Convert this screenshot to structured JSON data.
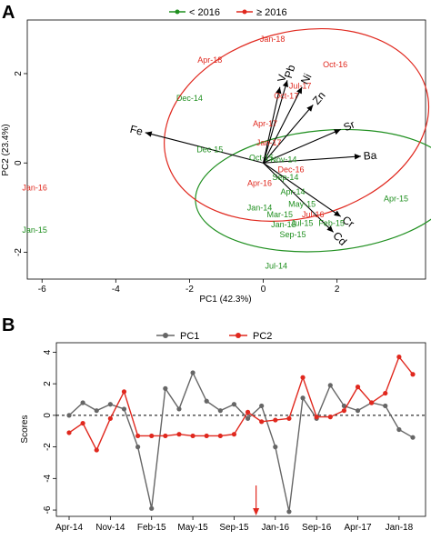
{
  "panels": {
    "a": {
      "letter": "A"
    },
    "b": {
      "letter": "B"
    }
  },
  "colors": {
    "group_before": "#1f8f1f",
    "group_after": "#e0281e",
    "pc1": "#666666",
    "pc2": "#e0281e",
    "arrow_marker": "#e0281e"
  },
  "chart_data": [
    {
      "type": "scatter",
      "subtype": "pca-biplot",
      "title": "",
      "xlabel": "PC1 (42.3%)",
      "ylabel": "PC2 (23.4%)",
      "xlim": [
        -6.4,
        4.4
      ],
      "ylim": [
        -2.6,
        3.2
      ],
      "x_ticks": [
        -6,
        -4,
        -2,
        0,
        2
      ],
      "y_ticks": [
        -2,
        0,
        2
      ],
      "legend": {
        "placement": "top",
        "entries": [
          {
            "name": "< 2016",
            "color": "#1f8f1f"
          },
          {
            "name": "≥ 2016",
            "color": "#e0281e"
          }
        ]
      },
      "ellipses": [
        {
          "group": "< 2016",
          "cx": 1.7,
          "cy": -0.62,
          "rx": 3.55,
          "ry": 1.35,
          "angle_deg": 5,
          "color": "#1f8f1f"
        },
        {
          "group": "≥ 2016",
          "cx": 0.9,
          "cy": 0.85,
          "rx": 3.65,
          "ry": 2.08,
          "angle_deg": 15,
          "color": "#e0281e"
        }
      ],
      "loadings": [
        {
          "name": "Fe",
          "x": -3.2,
          "y": 0.68
        },
        {
          "name": "V",
          "x": 0.45,
          "y": 1.7
        },
        {
          "name": "Pb",
          "x": 0.65,
          "y": 1.85
        },
        {
          "name": "Ni",
          "x": 1.05,
          "y": 1.7
        },
        {
          "name": "Zn",
          "x": 1.35,
          "y": 1.3
        },
        {
          "name": "Sr",
          "x": 2.1,
          "y": 0.75
        },
        {
          "name": "Ba",
          "x": 2.65,
          "y": 0.15
        },
        {
          "name": "Cr",
          "x": 2.1,
          "y": -1.2
        },
        {
          "name": "Cd",
          "x": 1.9,
          "y": -1.55
        }
      ],
      "points": [
        {
          "label": "Jan-18",
          "x": 0.25,
          "y": 2.77,
          "group": "after"
        },
        {
          "label": "Oct-16",
          "x": 1.95,
          "y": 2.2,
          "group": "after"
        },
        {
          "label": "Apr-18",
          "x": -1.45,
          "y": 2.3,
          "group": "after"
        },
        {
          "label": "Jul-17",
          "x": 1.0,
          "y": 1.72,
          "group": "after"
        },
        {
          "label": "Oct-17",
          "x": 0.62,
          "y": 1.5,
          "group": "after"
        },
        {
          "label": "Dec-14",
          "x": -2.0,
          "y": 1.45,
          "group": "before"
        },
        {
          "label": "Apr-17",
          "x": 0.05,
          "y": 0.88,
          "group": "after"
        },
        {
          "label": "Jan-17",
          "x": 0.15,
          "y": 0.45,
          "group": "after"
        },
        {
          "label": "Dec-15",
          "x": -1.45,
          "y": 0.3,
          "group": "before"
        },
        {
          "label": "Oct-15",
          "x": -0.05,
          "y": 0.12,
          "group": "before"
        },
        {
          "label": "Nov-14",
          "x": 0.55,
          "y": 0.08,
          "group": "before"
        },
        {
          "label": "Dec-16",
          "x": 0.75,
          "y": -0.15,
          "group": "after"
        },
        {
          "label": "Sep-14",
          "x": 0.6,
          "y": -0.32,
          "group": "before"
        },
        {
          "label": "Apr-16",
          "x": -0.1,
          "y": -0.45,
          "group": "after"
        },
        {
          "label": "Apr-14",
          "x": 0.8,
          "y": -0.65,
          "group": "before"
        },
        {
          "label": "Apr-15",
          "x": 3.6,
          "y": -0.8,
          "group": "before"
        },
        {
          "label": "Jan-14",
          "x": -0.1,
          "y": -1.0,
          "group": "before"
        },
        {
          "label": "May-15",
          "x": 1.05,
          "y": -0.92,
          "group": "before"
        },
        {
          "label": "Mar-15",
          "x": 0.45,
          "y": -1.15,
          "group": "before"
        },
        {
          "label": "Jul-16",
          "x": 1.35,
          "y": -1.15,
          "group": "after"
        },
        {
          "label": "Jan-15",
          "x": 0.55,
          "y": -1.38,
          "group": "before"
        },
        {
          "label": "Jul-15",
          "x": 1.05,
          "y": -1.35,
          "group": "before"
        },
        {
          "label": "Feb-15",
          "x": 1.85,
          "y": -1.35,
          "group": "before"
        },
        {
          "label": "Sep-15",
          "x": 0.8,
          "y": -1.6,
          "group": "before"
        },
        {
          "label": "Jul-14",
          "x": 0.35,
          "y": -2.3,
          "group": "before"
        },
        {
          "label": "Jan-16",
          "x": -6.2,
          "y": -0.55,
          "group": "after"
        },
        {
          "label": "Jan-15",
          "x": -6.2,
          "y": -1.5,
          "group": "before"
        }
      ]
    },
    {
      "type": "line",
      "title": "",
      "xlabel": "",
      "ylabel": "Scores",
      "ylim": [
        -6.4,
        4.6
      ],
      "y_ticks": [
        -6,
        -4,
        -2,
        0,
        2,
        4
      ],
      "x_tick_labels": [
        "Apr-14",
        "Nov-14",
        "Feb-15",
        "May-15",
        "Sep-15",
        "Jan-16",
        "Sep-16",
        "Apr-17",
        "Jan-18"
      ],
      "x_tick_index": [
        0,
        3,
        6,
        9,
        12,
        15,
        18,
        21,
        24
      ],
      "reference_line": 0,
      "arrow_marker_index": 13.6,
      "legend": {
        "placement": "top",
        "entries": [
          "PC1",
          "PC2"
        ]
      },
      "series": [
        {
          "name": "PC1",
          "color": "#666666",
          "values": [
            0.0,
            0.8,
            0.3,
            0.7,
            0.4,
            -2.0,
            -5.9,
            1.7,
            0.4,
            2.7,
            0.9,
            0.3,
            0.7,
            -0.2,
            0.6,
            -2.0,
            -6.1,
            1.1,
            -0.2,
            1.9,
            0.6,
            0.3,
            0.8,
            0.6,
            -0.9,
            -1.4
          ]
        },
        {
          "name": "PC2",
          "color": "#e0281e",
          "values": [
            -1.1,
            -0.5,
            -2.2,
            -0.2,
            1.5,
            -1.3,
            -1.3,
            -1.3,
            -1.2,
            -1.3,
            -1.3,
            -1.3,
            -1.2,
            0.2,
            -0.4,
            -0.3,
            -0.2,
            2.4,
            -0.1,
            -0.1,
            0.3,
            1.8,
            0.8,
            1.4,
            3.7,
            2.6
          ]
        }
      ]
    }
  ]
}
